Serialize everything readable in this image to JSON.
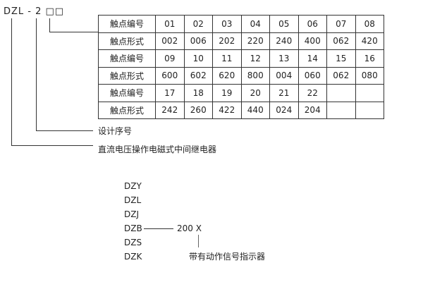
{
  "model_code": "DZL - 2 □□",
  "table": {
    "rows": [
      [
        "触点编号",
        "01",
        "02",
        "03",
        "04",
        "05",
        "06",
        "07",
        "08"
      ],
      [
        "触点形式",
        "002",
        "006",
        "202",
        "220",
        "240",
        "400",
        "062",
        "420"
      ],
      [
        "触点编号",
        "09",
        "10",
        "11",
        "12",
        "13",
        "14",
        "15",
        "16"
      ],
      [
        "触点形式",
        "600",
        "602",
        "620",
        "800",
        "004",
        "060",
        "062",
        "080"
      ],
      [
        "触点编号",
        "17",
        "18",
        "19",
        "20",
        "21",
        "22",
        "",
        ""
      ],
      [
        "触点形式",
        "242",
        "260",
        "422",
        "440",
        "024",
        "204",
        "",
        ""
      ]
    ]
  },
  "labels": {
    "design_no": "设计序号",
    "relay_type": "直流电压操作电磁式中间继电器"
  },
  "series": [
    "DZY",
    "DZL",
    "DZJ",
    "DZB",
    "DZS",
    "DZK"
  ],
  "suffix": "200  X",
  "indicator": "带有动作信号指示器"
}
